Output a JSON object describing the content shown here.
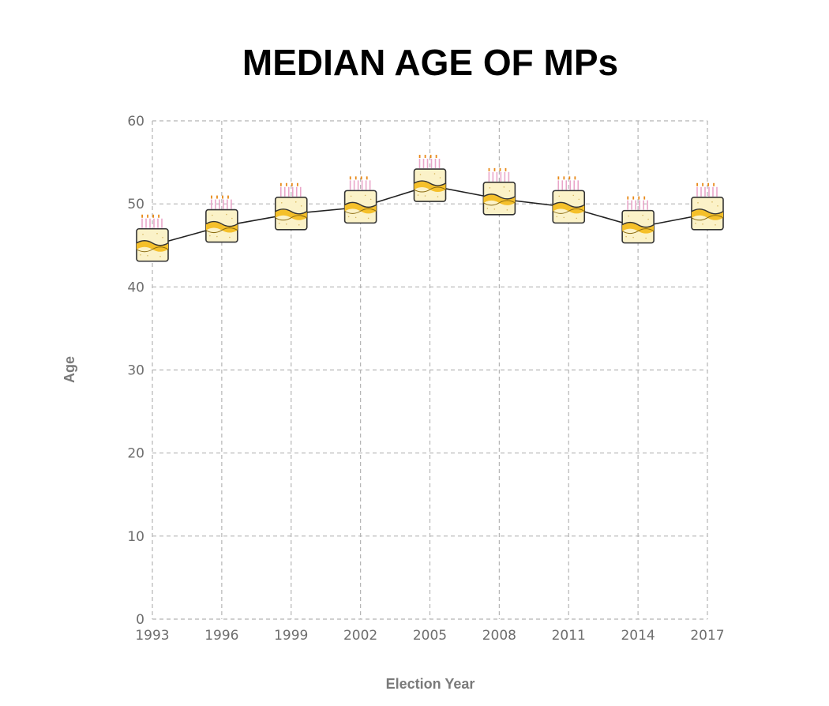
{
  "chart_data": {
    "type": "line",
    "title": "MEDIAN AGE OF MPs",
    "xlabel": "Election Year",
    "ylabel": "Age",
    "x": [
      "1993",
      "1996",
      "1999",
      "2002",
      "2005",
      "2008",
      "2011",
      "2014",
      "2017"
    ],
    "values": [
      45,
      47.3,
      48.8,
      49.6,
      52.2,
      50.6,
      49.6,
      47.2,
      48.8
    ],
    "ylim": [
      0,
      60
    ],
    "yticks": [
      0,
      10,
      20,
      30,
      40,
      50,
      60
    ],
    "grid": true,
    "marker": "birthday-cake-icon",
    "colors": {
      "line": "#222222",
      "grid": "#b5b5b5",
      "cake_body": "#fbf2c8",
      "cake_band": "#f5c02a",
      "cake_outline": "#333333",
      "candle": "#e9a6c9",
      "flame": "#e88a1a"
    }
  }
}
